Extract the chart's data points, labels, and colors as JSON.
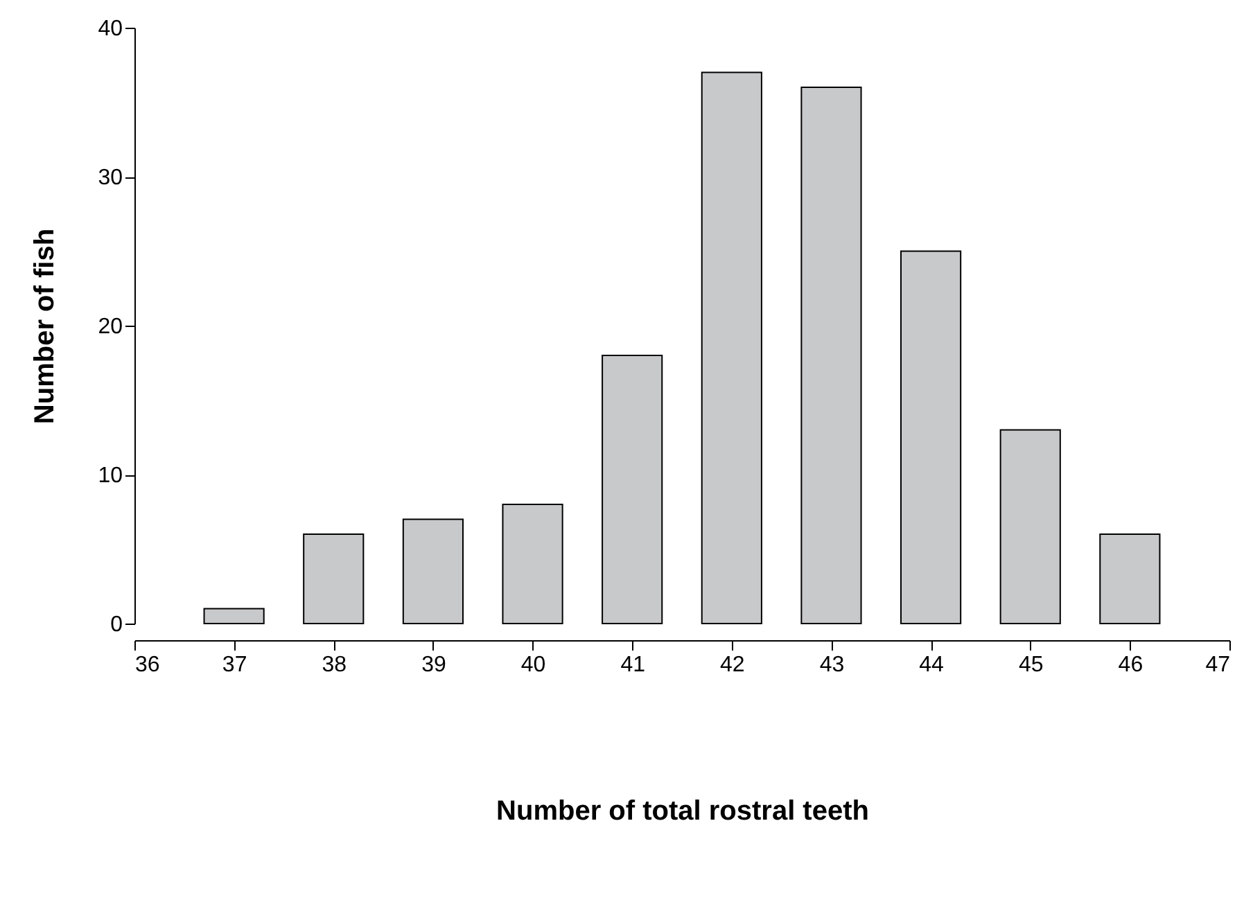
{
  "chart_data": {
    "type": "bar",
    "xlabel": "Number of total rostral teeth",
    "ylabel": "Number of fish",
    "x": [
      37,
      38,
      39,
      40,
      41,
      42,
      43,
      44,
      45,
      46
    ],
    "values": [
      1,
      6,
      7,
      8,
      18,
      37,
      36,
      25,
      13,
      6
    ],
    "color": "#c8c9cb",
    "xlim": [
      36,
      47
    ],
    "xticks": [
      36,
      37,
      38,
      39,
      40,
      41,
      42,
      43,
      44,
      45,
      46,
      47
    ],
    "ylim": [
      0,
      40
    ],
    "yticks": [
      0,
      10,
      20,
      30,
      40
    ],
    "grid": false
  }
}
